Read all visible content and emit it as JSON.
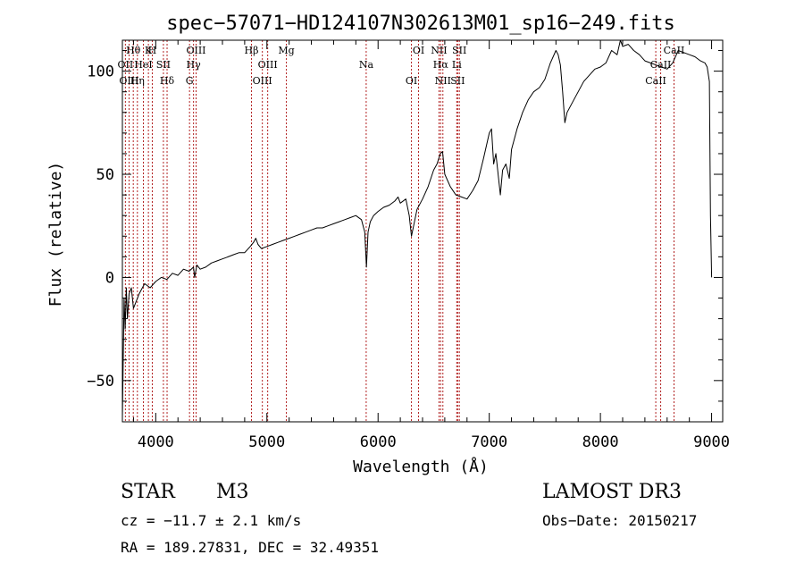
{
  "chart_data": {
    "type": "line",
    "title": "spec−57071−HD124107N302613M01_sp16−249.fits",
    "xlabel": "Wavelength (Å)",
    "ylabel": "Flux (relative)",
    "xlim": [
      3700,
      9100
    ],
    "ylim": [
      -70,
      115
    ],
    "xticks": [
      4000,
      5000,
      6000,
      7000,
      8000,
      9000
    ],
    "xtick_labels": [
      "4000",
      "5000",
      "6000",
      "7000",
      "8000",
      "9000"
    ],
    "yticks": [
      -50,
      0,
      50,
      100
    ],
    "ytick_labels": [
      "−50",
      "0",
      "50",
      "100"
    ],
    "grid": false,
    "series": [
      {
        "name": "flux",
        "x": [
          3700,
          3715,
          3725,
          3735,
          3745,
          3760,
          3780,
          3800,
          3850,
          3900,
          3950,
          4000,
          4050,
          4100,
          4150,
          4200,
          4250,
          4300,
          4340,
          4350,
          4370,
          4400,
          4450,
          4500,
          4550,
          4600,
          4650,
          4700,
          4750,
          4800,
          4850,
          4880,
          4900,
          4920,
          4950,
          5000,
          5050,
          5100,
          5150,
          5200,
          5250,
          5300,
          5350,
          5400,
          5450,
          5500,
          5550,
          5600,
          5650,
          5700,
          5750,
          5800,
          5850,
          5880,
          5895,
          5910,
          5930,
          5960,
          6000,
          6050,
          6100,
          6150,
          6180,
          6200,
          6250,
          6280,
          6300,
          6320,
          6350,
          6400,
          6450,
          6500,
          6530,
          6560,
          6580,
          6600,
          6650,
          6700,
          6750,
          6800,
          6850,
          6900,
          6950,
          7000,
          7020,
          7040,
          7060,
          7080,
          7100,
          7120,
          7150,
          7180,
          7200,
          7250,
          7300,
          7350,
          7400,
          7450,
          7500,
          7550,
          7600,
          7620,
          7640,
          7660,
          7680,
          7700,
          7750,
          7800,
          7850,
          7900,
          7950,
          8000,
          8050,
          8100,
          8150,
          8180,
          8200,
          8250,
          8300,
          8350,
          8400,
          8450,
          8500,
          8550,
          8600,
          8650,
          8700,
          8750,
          8800,
          8850,
          8900,
          8940,
          8960,
          8980,
          8990,
          9000
        ],
        "y": [
          -68,
          -10,
          -25,
          -5,
          -20,
          -8,
          -5,
          -15,
          -8,
          -3,
          -5,
          -2,
          0,
          -1,
          2,
          1,
          4,
          3,
          5,
          0,
          6,
          4,
          5,
          7,
          8,
          9,
          10,
          11,
          12,
          12,
          15,
          17,
          19,
          16,
          14,
          15,
          16,
          17,
          18,
          19,
          20,
          21,
          22,
          23,
          24,
          24,
          25,
          26,
          27,
          28,
          29,
          30,
          28,
          22,
          5,
          22,
          27,
          30,
          32,
          34,
          35,
          37,
          39,
          36,
          38,
          30,
          20,
          25,
          33,
          38,
          44,
          52,
          55,
          60,
          61,
          50,
          44,
          40,
          39,
          38,
          42,
          47,
          58,
          70,
          72,
          55,
          60,
          50,
          40,
          52,
          55,
          48,
          62,
          72,
          80,
          86,
          90,
          92,
          96,
          104,
          110,
          108,
          103,
          90,
          75,
          80,
          85,
          90,
          95,
          98,
          101,
          102,
          104,
          110,
          108,
          115,
          112,
          113,
          110,
          108,
          105,
          104,
          103,
          102,
          101,
          104,
          110,
          109,
          108,
          107,
          105,
          104,
          102,
          95,
          30,
          0
        ]
      }
    ],
    "annotations": [
      {
        "label": "Hθ",
        "x": 3798
      },
      {
        "label": "OII",
        "x": 3727
      },
      {
        "label": "OIII",
        "x": 3760
      },
      {
        "label": "K",
        "x": 3934
      },
      {
        "label": "HeI",
        "x": 3889
      },
      {
        "label": "Hη",
        "x": 3835
      },
      {
        "label": "H",
        "x": 3969
      },
      {
        "label": "SII",
        "x": 4069
      },
      {
        "label": "Hδ",
        "x": 4102
      },
      {
        "label": "OIII",
        "x": 4363
      },
      {
        "label": "Hγ",
        "x": 4340
      },
      {
        "label": "G",
        "x": 4304
      },
      {
        "label": "Hβ",
        "x": 4861
      },
      {
        "label": "OIII",
        "x": 5007
      },
      {
        "label": "OIII",
        "x": 4959
      },
      {
        "label": "Mg",
        "x": 5175
      },
      {
        "label": "Na",
        "x": 5893
      },
      {
        "label": "OI",
        "x": 6300
      },
      {
        "label": "OI",
        "x": 6364
      },
      {
        "label": "Hα",
        "x": 6563
      },
      {
        "label": "SII",
        "x": 6716
      },
      {
        "label": "NII",
        "x": 6548
      },
      {
        "label": "Li",
        "x": 6708
      },
      {
        "label": "NII",
        "x": 6583
      },
      {
        "label": "SII",
        "x": 6731
      },
      {
        "label": "CaII",
        "x": 8542
      },
      {
        "label": "CaII",
        "x": 8498
      },
      {
        "label": "CaII",
        "x": 8662
      }
    ]
  },
  "info": {
    "object_class": "STAR",
    "subclass": "M3",
    "survey": "LAMOST DR3",
    "cz": "cz = −11.7 ± 2.1 km/s",
    "obs_date": "Obs−Date: 20150217",
    "coords": "RA = 189.27831, DEC =  32.49351"
  },
  "colors": {
    "line_marker": "#b22222",
    "spectrum": "#000000",
    "background": "#ffffff"
  }
}
